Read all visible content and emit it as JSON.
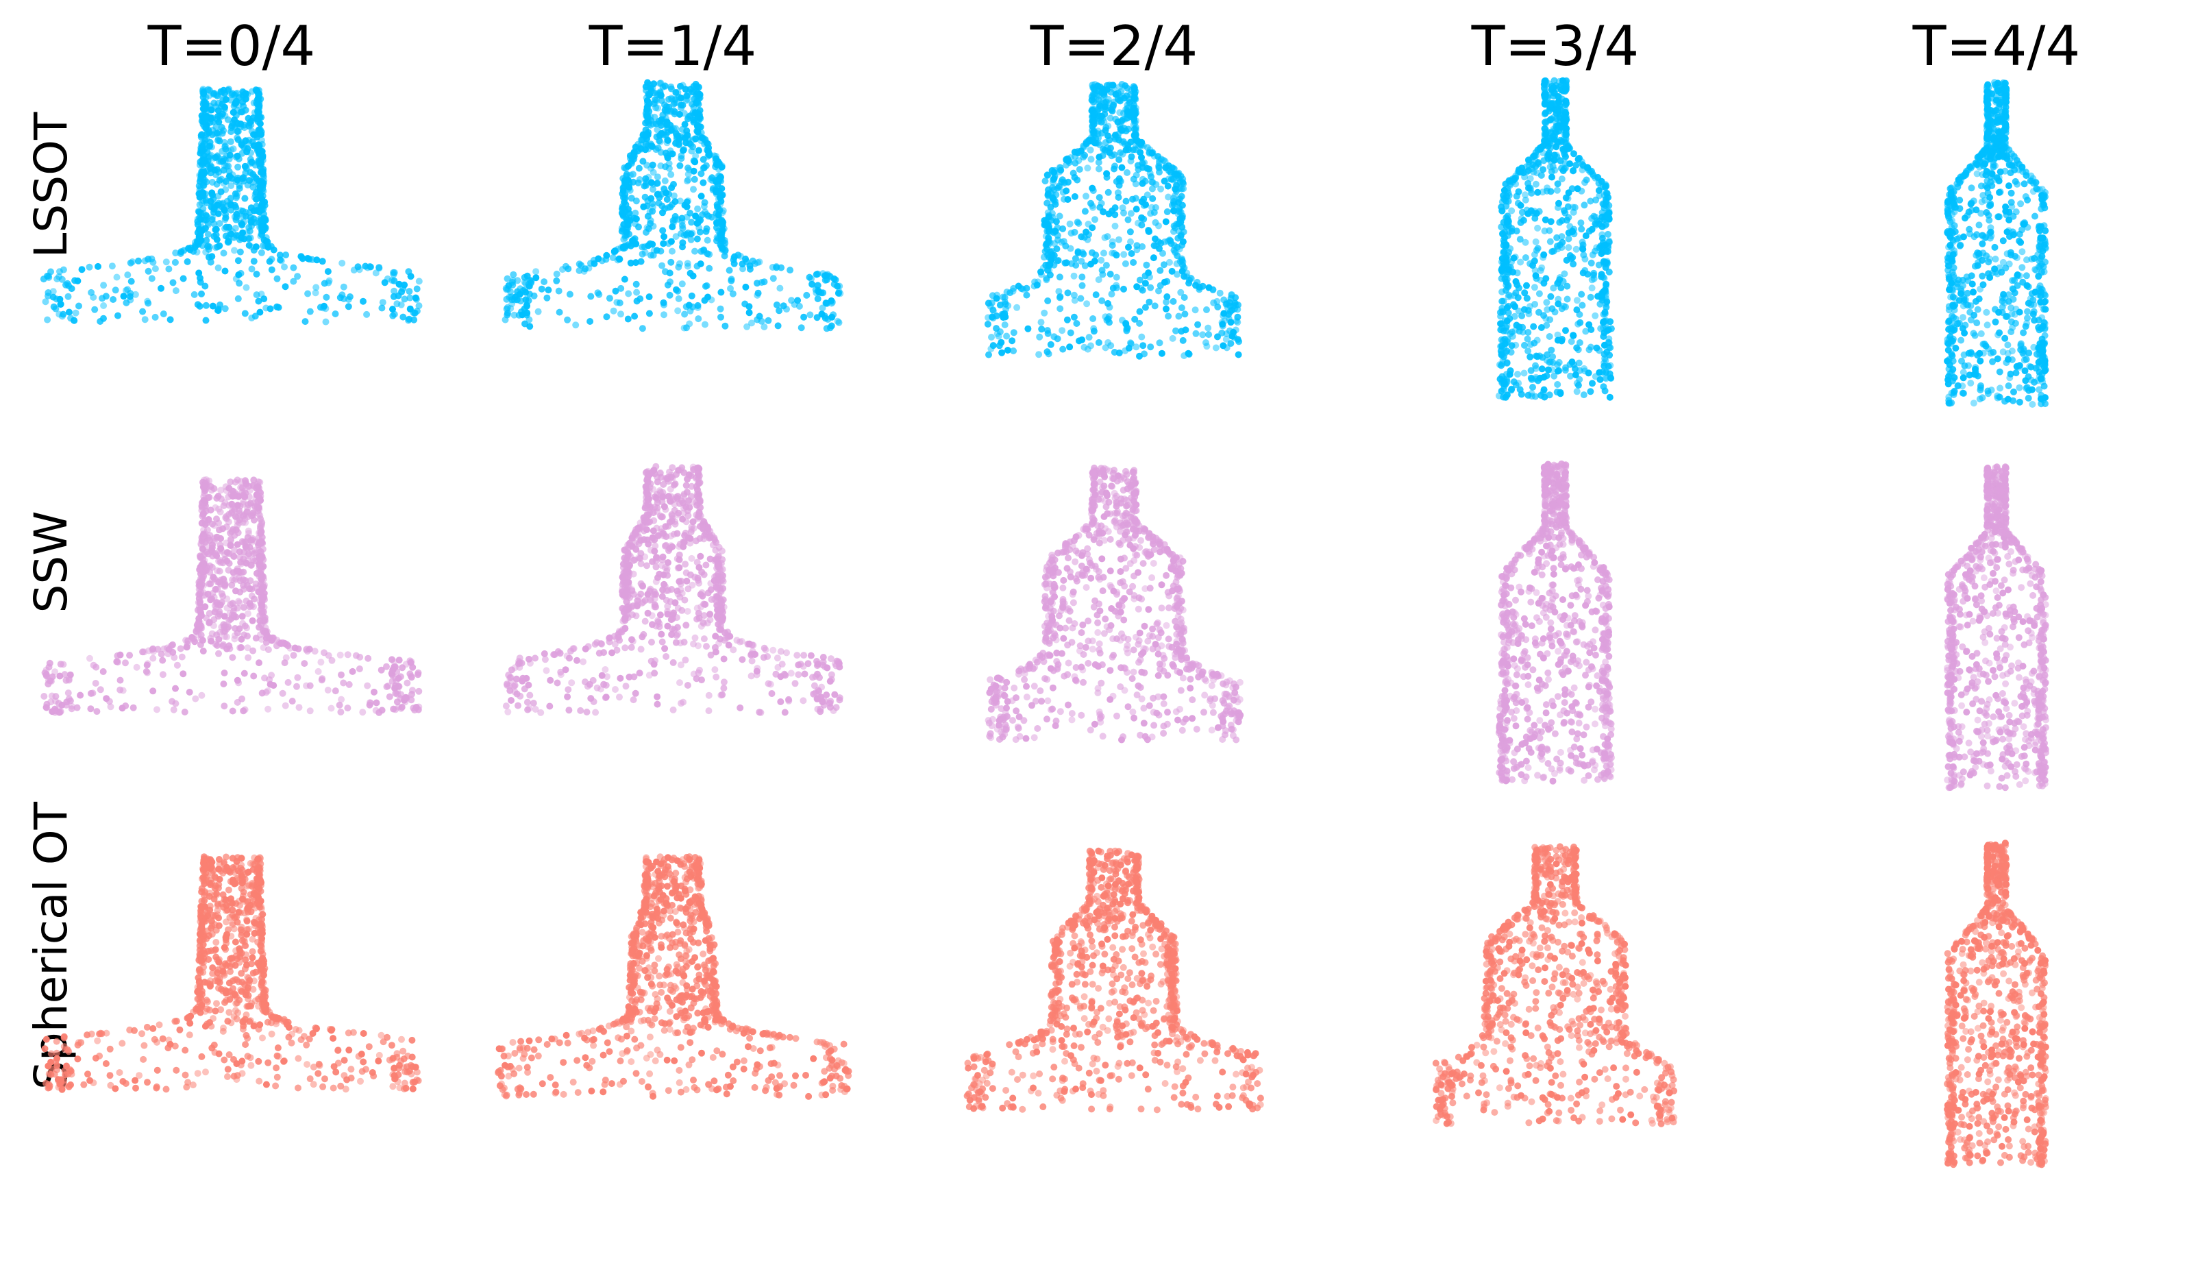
{
  "columns": [
    "T=0/4",
    "T=1/4",
    "T=2/4",
    "T=3/4",
    "T=4/4"
  ],
  "rows": [
    {
      "label": "LSSOT",
      "color": "#00bfff"
    },
    {
      "label": "SSW",
      "color": "#dda0dd"
    },
    {
      "label": "Spherical OT",
      "color": "#fa8072"
    }
  ],
  "shapes": {
    "start": "table",
    "end": "bottle"
  }
}
